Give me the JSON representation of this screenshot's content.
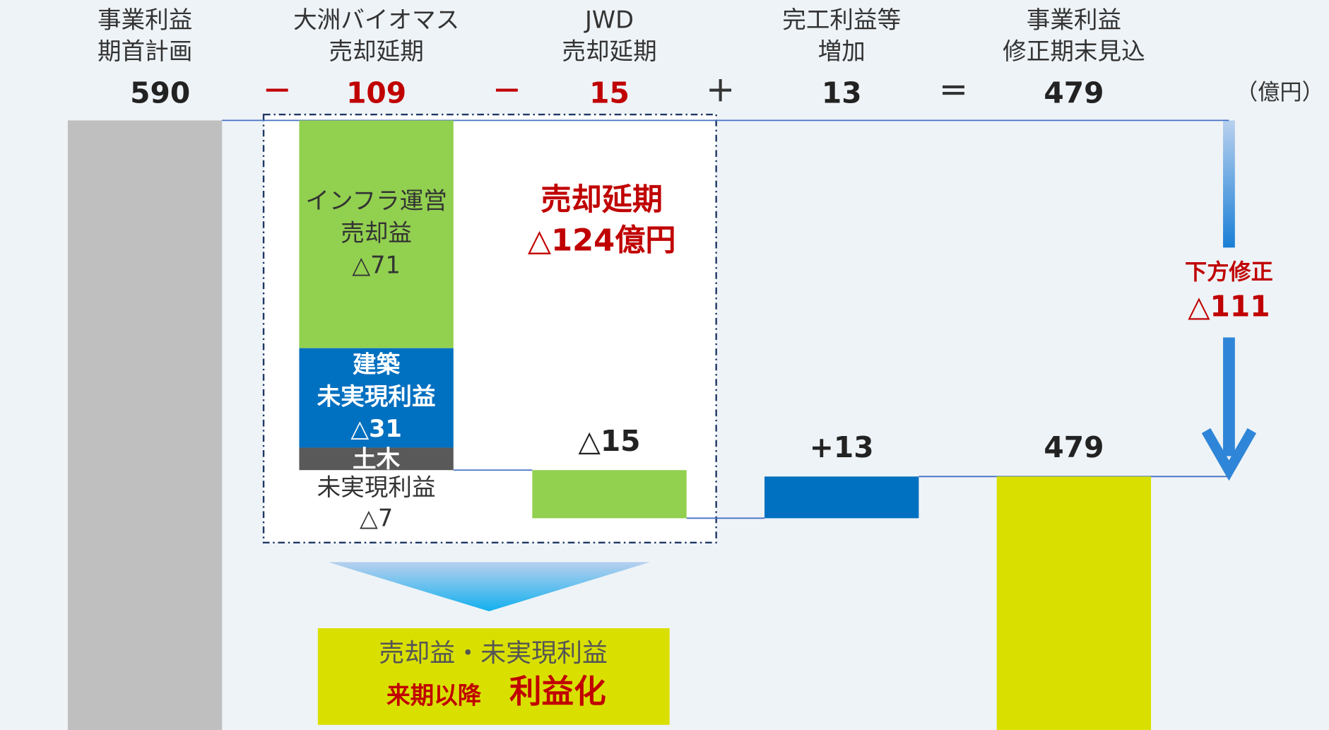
{
  "chart_data": {
    "type": "waterfall",
    "unit": "（億円）",
    "ylim": [
      400,
      590
    ],
    "categories": [
      [
        "事業利益",
        "期首計画"
      ],
      [
        "大洲バイオマス",
        "売却延期"
      ],
      [
        "JWD",
        "売却延期"
      ],
      [
        "完工利益等",
        "増加"
      ],
      [
        "事業利益",
        "修正期末見込"
      ]
    ],
    "operators": [
      "－",
      "－",
      "＋",
      "＝"
    ],
    "header_values": [
      590,
      109,
      15,
      13,
      479
    ],
    "start_color": "#bfbfbf",
    "segments": [
      {
        "name": [
          "インフラ運営",
          "売却益"
        ],
        "value": -71,
        "value_label": "△71",
        "color": "#92d050",
        "column": 1
      },
      {
        "name": [
          "建築",
          "未実現利益"
        ],
        "value": -31,
        "value_label": "△31",
        "color": "#0070c0",
        "column": 1
      },
      {
        "name": [
          "土木",
          "未実現利益"
        ],
        "value": -7,
        "value_label": "△7",
        "color": "#595959",
        "column": 1
      },
      {
        "value": -15,
        "value_label": "△15",
        "color": "#92d050",
        "column": 2
      },
      {
        "value": 13,
        "value_label": "+13",
        "color": "#0070c0",
        "column": 3
      }
    ],
    "end": {
      "value_label": "479",
      "color": "#d9e000"
    },
    "box_label": [
      "売却延期",
      "△124億円"
    ],
    "revision": [
      "下方修正",
      "△111"
    ],
    "note": [
      "売却益・未実現利益",
      "来期以降",
      "利益化"
    ]
  }
}
